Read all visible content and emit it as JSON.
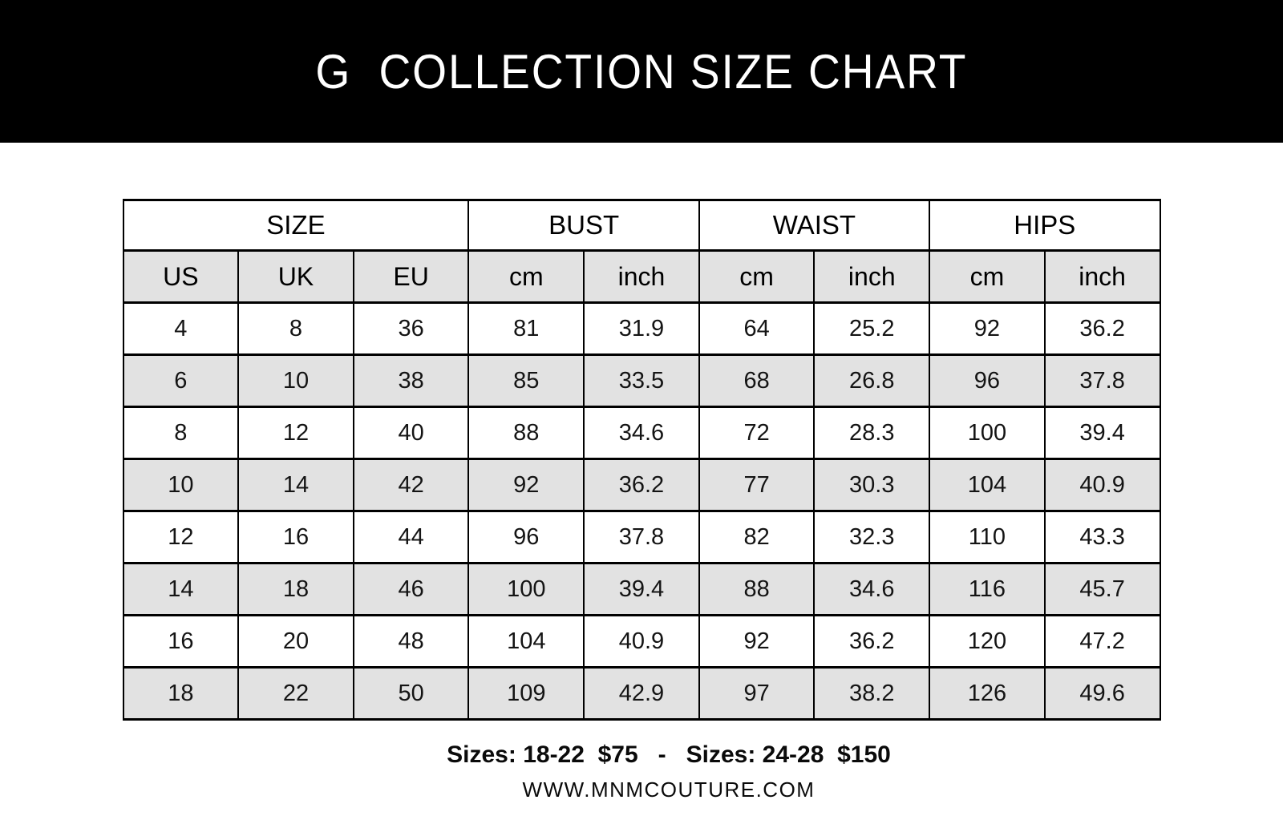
{
  "title": "G  COLLECTION SIZE CHART",
  "colors": {
    "banner_bg": "#000000",
    "banner_text": "#ffffff",
    "row_alt_bg": "#e2e2e2",
    "border": "#000000"
  },
  "chart_data": {
    "type": "table",
    "title": "G COLLECTION SIZE CHART",
    "group_headers": [
      {
        "label": "SIZE",
        "span": 3
      },
      {
        "label": "BUST",
        "span": 2
      },
      {
        "label": "WAIST",
        "span": 2
      },
      {
        "label": "HIPS",
        "span": 2
      }
    ],
    "columns": [
      "US",
      "UK",
      "EU",
      "cm",
      "inch",
      "cm",
      "inch",
      "cm",
      "inch"
    ],
    "rows": [
      [
        "4",
        "8",
        "36",
        "81",
        "31.9",
        "64",
        "25.2",
        "92",
        "36.2"
      ],
      [
        "6",
        "10",
        "38",
        "85",
        "33.5",
        "68",
        "26.8",
        "96",
        "37.8"
      ],
      [
        "8",
        "12",
        "40",
        "88",
        "34.6",
        "72",
        "28.3",
        "100",
        "39.4"
      ],
      [
        "10",
        "14",
        "42",
        "92",
        "36.2",
        "77",
        "30.3",
        "104",
        "40.9"
      ],
      [
        "12",
        "16",
        "44",
        "96",
        "37.8",
        "82",
        "32.3",
        "110",
        "43.3"
      ],
      [
        "14",
        "18",
        "46",
        "100",
        "39.4",
        "88",
        "34.6",
        "116",
        "45.7"
      ],
      [
        "16",
        "20",
        "48",
        "104",
        "40.9",
        "92",
        "36.2",
        "120",
        "47.2"
      ],
      [
        "18",
        "22",
        "50",
        "109",
        "42.9",
        "97",
        "38.2",
        "126",
        "49.6"
      ]
    ],
    "layout": {
      "alternating_row_shading": true,
      "grid": true
    }
  },
  "footer": {
    "pricing": "Sizes: 18-22  $75   -   Sizes: 24-28  $150",
    "website": "WWW.MNMCOUTURE.COM"
  }
}
